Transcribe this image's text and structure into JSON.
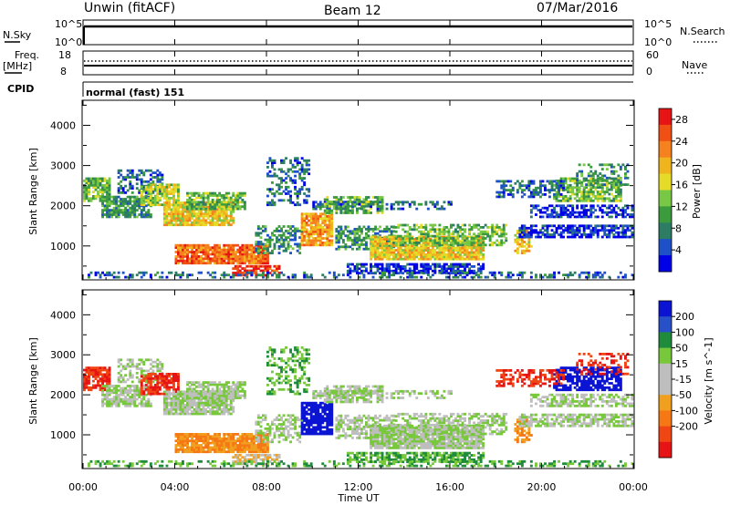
{
  "header": {
    "station": "Unwin (fitACF)",
    "beam": "Beam 12",
    "date": "07/Mar/2016"
  },
  "nsky": {
    "label": "N.Sky",
    "tick_high": "10^5",
    "tick_low": "10^0",
    "right_label": "N.Search",
    "right_tick_high": "10^5",
    "right_tick_low": "10^0"
  },
  "freq": {
    "label_1": "Freq.",
    "label_2": "[MHz]",
    "tick_high": "18",
    "tick_low": "8",
    "right_label": "Nave",
    "right_tick_high": "60",
    "right_tick_low": "0"
  },
  "cpid": {
    "label": "CPID",
    "value": "normal (fast) 151"
  },
  "colors": {
    "power": [
      "#0000e6",
      "#1e50c8",
      "#2d7d64",
      "#3c9b3c",
      "#78c846",
      "#e6dc28",
      "#f0b41e",
      "#f5821e",
      "#f05014",
      "#e61414"
    ],
    "velocity": [
      "#0a14d2",
      "#2850c8",
      "#1e8c3c",
      "#78c83c",
      "#bebebe",
      "#bebebe",
      "#f0a01e",
      "#f57814",
      "#f04614",
      "#e61414"
    ]
  },
  "chart_data": [
    {
      "type": "heatmap",
      "name": "power",
      "ylabel": "Slant Range [km]",
      "yticks": [
        "1000",
        "2000",
        "3000",
        "4000"
      ],
      "ylim": [
        180,
        4600
      ],
      "xlim": [
        0,
        24
      ],
      "colorbar_label": "Power [dB]",
      "colorbar_ticks": [
        "4",
        "8",
        "12",
        "16",
        "20",
        "24",
        "28"
      ],
      "colorbar_range": [
        0,
        30
      ]
    },
    {
      "type": "heatmap",
      "name": "velocity",
      "ylabel": "Slant Range [km]",
      "yticks": [
        "1000",
        "2000",
        "3000",
        "4000"
      ],
      "ylim": [
        180,
        4600
      ],
      "xlim": [
        0,
        24
      ],
      "colorbar_label": "Velocity [m s^-1]",
      "colorbar_ticks": [
        "200",
        "100",
        "50",
        "15",
        "-15",
        "-50",
        "-100",
        "-200"
      ]
    }
  ],
  "xaxis": {
    "ticks": [
      "00:00",
      "04:00",
      "08:00",
      "12:00",
      "16:00",
      "20:00",
      "00:00"
    ],
    "label": "Time UT"
  }
}
